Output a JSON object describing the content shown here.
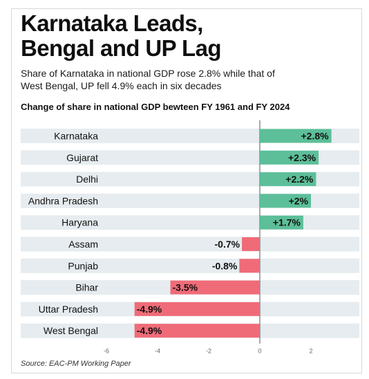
{
  "title_lines": [
    "Karnataka Leads,",
    "Bengal and UP Lag"
  ],
  "subtitle_lines": [
    "Share of Karnataka in national GDP rose 2.8% while that of",
    "West Bengal, UP fell 4.9% each in six decades"
  ],
  "chart_heading": "Change of share in national GDP bewteen FY 1961 and FY 2024",
  "source": "Source: EAC-PM Working Paper",
  "colors": {
    "positive": "#5cbf99",
    "negative": "#f06b78",
    "band": "#e6ecef",
    "axis": "#555555",
    "text": "#111111"
  },
  "chart_data": {
    "type": "bar",
    "orientation": "horizontal",
    "categories": [
      "Karnataka",
      "Gujarat",
      "Delhi",
      "Andhra Pradesh",
      "Haryana",
      "Assam",
      "Punjab",
      "Bihar",
      "Uttar Pradesh",
      "West Bengal"
    ],
    "values": [
      2.8,
      2.3,
      2.2,
      2,
      1.7,
      -0.7,
      -0.8,
      -3.5,
      -4.9,
      -4.9
    ],
    "labels": [
      "+2.8%",
      "+2.3%",
      "+2.2%",
      "+2%",
      "+1.7%",
      "-0.7%",
      "-0.8%",
      "-3.5%",
      "-4.9%",
      "-4.9%"
    ],
    "xlim": [
      -6,
      4
    ],
    "xticks": [
      -6,
      -4,
      -2,
      0,
      2
    ],
    "xtick_labels": [
      "-6",
      "-4",
      "-2",
      "0",
      "2"
    ],
    "grid": false
  }
}
